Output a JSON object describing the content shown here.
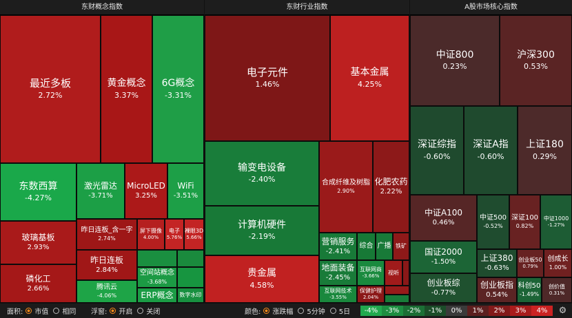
{
  "panels": [
    {
      "title": "东财概念指数",
      "tiles": [
        {
          "name": "最近多板",
          "pct": "2.72%",
          "color": "#b01c1c"
        },
        {
          "name": "黄金概念",
          "pct": "3.37%",
          "color": "#a81717"
        },
        {
          "name": "6G概念",
          "pct": "-3.31%",
          "color": "#1f9e47"
        },
        {
          "name": "东数西算",
          "pct": "-4.27%",
          "color": "#1aa84a"
        },
        {
          "name": "激光雷达",
          "pct": "-3.71%",
          "color": "#1c9f46"
        },
        {
          "name": "MicroLED",
          "pct": "3.25%",
          "color": "#ac1919"
        },
        {
          "name": "WiFi",
          "pct": "-3.51%",
          "color": "#1d9f47"
        },
        {
          "name": "玻璃基板",
          "pct": "2.93%",
          "color": "#a91a1a"
        },
        {
          "name": "昨日连板_含一字",
          "pct": "2.74%",
          "color": "#9e1717"
        },
        {
          "name": "屏下摄像",
          "pct": "4.00%",
          "color": "#b51f1f"
        },
        {
          "name": "电子",
          "pct": "5.76%",
          "color": "#c42424"
        },
        {
          "name": "裸眼3D",
          "pct": "5.66%",
          "color": "#c32424"
        },
        {
          "name": "磷化工",
          "pct": "2.66%",
          "color": "#a51818"
        },
        {
          "name": "昨日连板",
          "pct": "2.84%",
          "color": "#a01717"
        },
        {
          "name": "腾讯云",
          "pct": "-4.06%",
          "color": "#1ea447"
        },
        {
          "name": "空间站概念",
          "pct": "-3.68%",
          "color": "#1c9a44"
        },
        {
          "name": "",
          "pct": "",
          "color": "#1a8f40"
        },
        {
          "name": "",
          "pct": "",
          "color": "#1a8a3d"
        },
        {
          "name": "ERP概念",
          "pct": "",
          "color": "#1b9c45"
        },
        {
          "name": "数字水印",
          "pct": "",
          "color": "#189040"
        },
        {
          "name": "",
          "pct": "",
          "color": "#179540"
        }
      ]
    },
    {
      "title": "东财行业指数",
      "tiles": [
        {
          "name": "电子元件",
          "pct": "1.46%",
          "color": "#7e1717"
        },
        {
          "name": "基本金属",
          "pct": "4.25%",
          "color": "#bd2020"
        },
        {
          "name": "输变电设备",
          "pct": "-2.40%",
          "color": "#197d3a"
        },
        {
          "name": "计算机硬件",
          "pct": "-2.19%",
          "color": "#187937"
        },
        {
          "name": "贵金属",
          "pct": "4.58%",
          "color": "#c12121"
        },
        {
          "name": "合成纤维及树脂",
          "pct": "2.90%",
          "color": "#9a1a1a"
        },
        {
          "name": "化肥农药",
          "pct": "2.22%",
          "color": "#8d1919"
        },
        {
          "name": "营销服务",
          "pct": "-2.41%",
          "color": "#187a38"
        },
        {
          "name": "综合",
          "pct": "",
          "color": "#177936"
        },
        {
          "name": "广播",
          "pct": "",
          "color": "#187a38"
        },
        {
          "name": "铁矿",
          "pct": "",
          "color": "#8e1919"
        },
        {
          "name": "地面装备",
          "pct": "-2.45%",
          "color": "#197b39"
        },
        {
          "name": "互联网商",
          "pct": "-3.66%",
          "color": "#1a8a3e"
        },
        {
          "name": "视听",
          "pct": "",
          "color": "#a01b1b"
        },
        {
          "name": "互联网技术",
          "pct": "-3.55%",
          "color": "#1a883d"
        },
        {
          "name": "保健护理",
          "pct": "2.04%",
          "color": "#8b1818"
        },
        {
          "name": "",
          "pct": "",
          "color": "#981a1a"
        },
        {
          "name": "",
          "pct": "",
          "color": "#197b39"
        },
        {
          "name": "",
          "pct": "",
          "color": "#8a1818"
        }
      ]
    },
    {
      "title": "A股市场核心指数",
      "tiles": [
        {
          "name": "中证800",
          "pct": "0.23%",
          "color": "#4b2a2a"
        },
        {
          "name": "沪深300",
          "pct": "0.53%",
          "color": "#5a2424"
        },
        {
          "name": "深证综指",
          "pct": "-0.60%",
          "color": "#1f4a2e"
        },
        {
          "name": "深证A指",
          "pct": "-0.60%",
          "color": "#1f4a2e"
        },
        {
          "name": "上证180",
          "pct": "0.29%",
          "color": "#4d2a2a"
        },
        {
          "name": "中证A100",
          "pct": "0.46%",
          "color": "#562626"
        },
        {
          "name": "中证500",
          "pct": "-0.52%",
          "color": "#1f4c2f"
        },
        {
          "name": "深证100",
          "pct": "0.82%",
          "color": "#682222"
        },
        {
          "name": "中证1000",
          "pct": "-1.27%",
          "color": "#1d5c34"
        },
        {
          "name": "国证2000",
          "pct": "-1.50%",
          "color": "#1c6536"
        },
        {
          "name": "上证380",
          "pct": "-0.63%",
          "color": "#1f4c2e"
        },
        {
          "name": "创业板50",
          "pct": "0.79%",
          "color": "#672222"
        },
        {
          "name": "创成长",
          "pct": "1.00%",
          "color": "#702020"
        },
        {
          "name": "创业板综",
          "pct": "-0.77%",
          "color": "#1f512f"
        },
        {
          "name": "创业板指",
          "pct": "0.54%",
          "color": "#5b2424"
        },
        {
          "name": "科创50",
          "pct": "-1.49%",
          "color": "#1c6436"
        },
        {
          "name": "创价值",
          "pct": "0.31%",
          "color": "#4e2828"
        }
      ]
    }
  ],
  "toolbar": {
    "area_label": "面积:",
    "area_options": [
      "市值",
      "相同"
    ],
    "float_label": "浮窗:",
    "float_options": [
      "开启",
      "关闭"
    ],
    "color_label": "颜色:",
    "color_options": [
      "涨跌幅",
      "5分钟",
      "5日"
    ],
    "legend": [
      {
        "label": "-4%",
        "color": "#22a94e"
      },
      {
        "label": "-3%",
        "color": "#1d8e41"
      },
      {
        "label": "-2%",
        "color": "#1b6f35"
      },
      {
        "label": "-1%",
        "color": "#1b4d29"
      },
      {
        "label": "0%",
        "color": "#3a3a3a"
      },
      {
        "label": "1%",
        "color": "#5c1f1f"
      },
      {
        "label": "2%",
        "color": "#821a1a"
      },
      {
        "label": "3%",
        "color": "#a81b1b"
      },
      {
        "label": "4%",
        "color": "#cb2222"
      }
    ]
  }
}
